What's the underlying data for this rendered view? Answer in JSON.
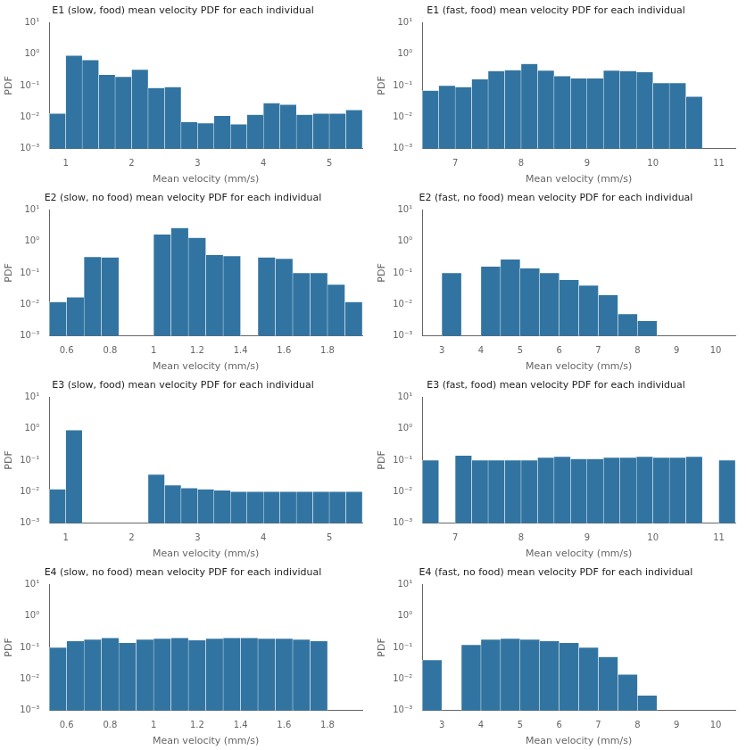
{
  "chart_data": [
    {
      "type": "histogram",
      "title": "E1 (slow, food) mean velocity PDF for each individual",
      "xlabel": "Mean velocity (mm/s)",
      "ylabel": "PDF",
      "bins": [
        0.75,
        1.0,
        1.25,
        1.5,
        1.75,
        2.0,
        2.25,
        2.5,
        2.75,
        3.0,
        3.25,
        3.5,
        3.75,
        4.0,
        4.25,
        4.5,
        4.75,
        5.0,
        5.25,
        5.5
      ],
      "values": [
        0.013,
        0.9,
        0.65,
        0.22,
        0.19,
        0.32,
        0.085,
        0.09,
        0.007,
        0.0065,
        0.011,
        0.006,
        0.012,
        0.028,
        0.025,
        0.012,
        0.013,
        0.013,
        0.017
      ],
      "color": "#3274a1",
      "log": "y",
      "grid": false,
      "xlim": [
        0.75,
        5.5
      ],
      "xticks": [
        1,
        2,
        3,
        4,
        5
      ],
      "ylim": [
        0.001,
        10
      ],
      "yticks": [
        {
          "value": 0.001,
          "label": "10⁻³"
        },
        {
          "value": 0.01,
          "label": "10⁻²"
        },
        {
          "value": 0.1,
          "label": "10⁻¹"
        },
        {
          "value": 1,
          "label": "10⁰"
        },
        {
          "value": 10,
          "label": "10¹"
        }
      ]
    },
    {
      "type": "histogram",
      "title": "E1 (fast, food) mean velocity PDF for each individual",
      "xlabel": "Mean velocity (mm/s)",
      "ylabel": "PDF",
      "bins": [
        6.5,
        6.75,
        7.0,
        7.25,
        7.5,
        7.75,
        8.0,
        8.25,
        8.5,
        8.75,
        9.0,
        9.25,
        9.5,
        9.75,
        10.0,
        10.25,
        10.5,
        10.75,
        11.0,
        11.25
      ],
      "values": [
        0.07,
        0.1,
        0.09,
        0.16,
        0.29,
        0.31,
        0.49,
        0.3,
        0.2,
        0.17,
        0.17,
        0.3,
        0.29,
        0.27,
        0.12,
        0.12,
        0.045,
        0.001,
        0.001
      ],
      "color": "#3274a1",
      "log": "y",
      "grid": false,
      "xlim": [
        6.5,
        11.25
      ],
      "xticks": [
        7,
        8,
        9,
        10,
        11
      ],
      "ylim": [
        0.001,
        10
      ],
      "yticks": [
        {
          "value": 0.001,
          "label": "10⁻³"
        },
        {
          "value": 0.01,
          "label": "10⁻²"
        },
        {
          "value": 0.1,
          "label": "10⁻¹"
        },
        {
          "value": 1,
          "label": "10⁰"
        },
        {
          "value": 10,
          "label": "10¹"
        }
      ]
    },
    {
      "type": "histogram",
      "title": "E2 (slow, no food) mean velocity PDF for each individual",
      "xlabel": "Mean velocity (mm/s)",
      "ylabel": "PDF",
      "bins": [
        0.52,
        0.6,
        0.68,
        0.76,
        0.84,
        0.92,
        1.0,
        1.08,
        1.16,
        1.24,
        1.32,
        1.4,
        1.48,
        1.56,
        1.64,
        1.72,
        1.8,
        1.88,
        1.96
      ],
      "values": [
        0.012,
        0.017,
        0.32,
        0.31,
        0.001,
        0.001,
        1.65,
        2.65,
        1.3,
        0.37,
        0.34,
        0.001,
        0.31,
        0.28,
        0.1,
        0.1,
        0.043,
        0.012
      ],
      "color": "#3274a1",
      "log": "y",
      "grid": false,
      "xlim": [
        0.52,
        1.96
      ],
      "xticks": [
        0.6,
        0.8,
        1,
        1.2,
        1.4,
        1.6,
        1.8
      ],
      "ylim": [
        0.001,
        10
      ],
      "yticks": [
        {
          "value": 0.001,
          "label": "10⁻³"
        },
        {
          "value": 0.01,
          "label": "10⁻²"
        },
        {
          "value": 0.1,
          "label": "10⁻¹"
        },
        {
          "value": 1,
          "label": "10⁰"
        },
        {
          "value": 10,
          "label": "10¹"
        }
      ]
    },
    {
      "type": "histogram",
      "title": "E2 (fast, no food) mean velocity PDF for each individual",
      "xlabel": "Mean velocity (mm/s)",
      "ylabel": "PDF",
      "bins": [
        2.5,
        3.0,
        3.5,
        4.0,
        4.5,
        5.0,
        5.5,
        6.0,
        6.5,
        7.0,
        7.5,
        8.0,
        8.5,
        9.0,
        9.5,
        10.0,
        10.5
      ],
      "values": [
        0.001,
        0.1,
        0.001,
        0.16,
        0.27,
        0.14,
        0.1,
        0.06,
        0.04,
        0.02,
        0.005,
        0.003,
        0.001,
        0.001,
        0.001,
        0.001
      ],
      "color": "#3274a1",
      "log": "y",
      "grid": false,
      "xlim": [
        2.5,
        10.5
      ],
      "xticks": [
        3,
        4,
        5,
        6,
        7,
        8,
        9,
        10
      ],
      "ylim": [
        0.001,
        10
      ],
      "yticks": [
        {
          "value": 0.001,
          "label": "10⁻³"
        },
        {
          "value": 0.01,
          "label": "10⁻²"
        },
        {
          "value": 0.1,
          "label": "10⁻¹"
        },
        {
          "value": 1,
          "label": "10⁰"
        },
        {
          "value": 10,
          "label": "10¹"
        }
      ]
    },
    {
      "type": "histogram",
      "title": "E3 (slow, food) mean velocity PDF for each individual",
      "xlabel": "Mean velocity (mm/s)",
      "ylabel": "PDF",
      "bins": [
        0.75,
        1.0,
        1.25,
        1.5,
        1.75,
        2.0,
        2.25,
        2.5,
        2.75,
        3.0,
        3.25,
        3.5,
        3.75,
        4.0,
        4.25,
        4.5,
        4.75,
        5.0,
        5.25,
        5.5
      ],
      "values": [
        0.012,
        0.9,
        0.001,
        0.001,
        0.001,
        0.001,
        0.035,
        0.016,
        0.013,
        0.012,
        0.011,
        0.01,
        0.01,
        0.01,
        0.01,
        0.01,
        0.01,
        0.01,
        0.01
      ],
      "color": "#3274a1",
      "log": "y",
      "grid": false,
      "xlim": [
        0.75,
        5.5
      ],
      "xticks": [
        1,
        2,
        3,
        4,
        5
      ],
      "ylim": [
        0.001,
        10
      ],
      "yticks": [
        {
          "value": 0.001,
          "label": "10⁻³"
        },
        {
          "value": 0.01,
          "label": "10⁻²"
        },
        {
          "value": 0.1,
          "label": "10⁻¹"
        },
        {
          "value": 1,
          "label": "10⁰"
        },
        {
          "value": 10,
          "label": "10¹"
        }
      ]
    },
    {
      "type": "histogram",
      "title": "E3 (fast, food) mean velocity PDF for each individual",
      "xlabel": "Mean velocity (mm/s)",
      "ylabel": "PDF",
      "bins": [
        6.5,
        6.75,
        7.0,
        7.25,
        7.5,
        7.75,
        8.0,
        8.25,
        8.5,
        8.75,
        9.0,
        9.25,
        9.5,
        9.75,
        10.0,
        10.25,
        10.5,
        10.75,
        11.0,
        11.25
      ],
      "values": [
        0.1,
        0.001,
        0.14,
        0.1,
        0.1,
        0.1,
        0.1,
        0.12,
        0.13,
        0.11,
        0.11,
        0.12,
        0.12,
        0.13,
        0.12,
        0.12,
        0.13,
        0.001,
        0.1
      ],
      "color": "#3274a1",
      "log": "y",
      "grid": false,
      "xlim": [
        6.5,
        11.25
      ],
      "xticks": [
        7,
        8,
        9,
        10,
        11
      ],
      "ylim": [
        0.001,
        10
      ],
      "yticks": [
        {
          "value": 0.001,
          "label": "10⁻³"
        },
        {
          "value": 0.01,
          "label": "10⁻²"
        },
        {
          "value": 0.1,
          "label": "10⁻¹"
        },
        {
          "value": 1,
          "label": "10⁰"
        },
        {
          "value": 10,
          "label": "10¹"
        }
      ]
    },
    {
      "type": "histogram",
      "title": "E4 (slow, no food) mean velocity PDF for each individual",
      "xlabel": "Mean velocity (mm/s)",
      "ylabel": "PDF",
      "bins": [
        0.52,
        0.6,
        0.68,
        0.76,
        0.84,
        0.92,
        1.0,
        1.08,
        1.16,
        1.24,
        1.32,
        1.4,
        1.48,
        1.56,
        1.64,
        1.72,
        1.8,
        1.88,
        1.96
      ],
      "values": [
        0.1,
        0.16,
        0.18,
        0.2,
        0.14,
        0.18,
        0.19,
        0.2,
        0.17,
        0.19,
        0.2,
        0.2,
        0.19,
        0.19,
        0.18,
        0.16,
        0.001,
        0.001
      ],
      "color": "#3274a1",
      "log": "y",
      "grid": false,
      "xlim": [
        0.52,
        1.96
      ],
      "xticks": [
        0.6,
        0.8,
        1,
        1.2,
        1.4,
        1.6,
        1.8
      ],
      "ylim": [
        0.001,
        10
      ],
      "yticks": [
        {
          "value": 0.001,
          "label": "10⁻³"
        },
        {
          "value": 0.01,
          "label": "10⁻²"
        },
        {
          "value": 0.1,
          "label": "10⁻¹"
        },
        {
          "value": 1,
          "label": "10⁰"
        },
        {
          "value": 10,
          "label": "10¹"
        }
      ]
    },
    {
      "type": "histogram",
      "title": "E4 (fast, no food) mean velocity PDF for each individual",
      "xlabel": "Mean velocity (mm/s)",
      "ylabel": "PDF",
      "bins": [
        2.5,
        3.0,
        3.5,
        4.0,
        4.5,
        5.0,
        5.5,
        6.0,
        6.5,
        7.0,
        7.5,
        8.0,
        8.5,
        9.0,
        9.5,
        10.0,
        10.5
      ],
      "values": [
        0.04,
        0.001,
        0.12,
        0.18,
        0.19,
        0.18,
        0.16,
        0.14,
        0.1,
        0.05,
        0.014,
        0.003,
        0.001,
        0.001,
        0.001,
        0.001
      ],
      "color": "#3274a1",
      "log": "y",
      "grid": false,
      "xlim": [
        2.5,
        10.5
      ],
      "xticks": [
        3,
        4,
        5,
        6,
        7,
        8,
        9,
        10
      ],
      "ylim": [
        0.001,
        10
      ],
      "yticks": [
        {
          "value": 0.001,
          "label": "10⁻³"
        },
        {
          "value": 0.01,
          "label": "10⁻²"
        },
        {
          "value": 0.1,
          "label": "10⁻¹"
        },
        {
          "value": 1,
          "label": "10⁰"
        },
        {
          "value": 10,
          "label": "10¹"
        }
      ]
    }
  ]
}
